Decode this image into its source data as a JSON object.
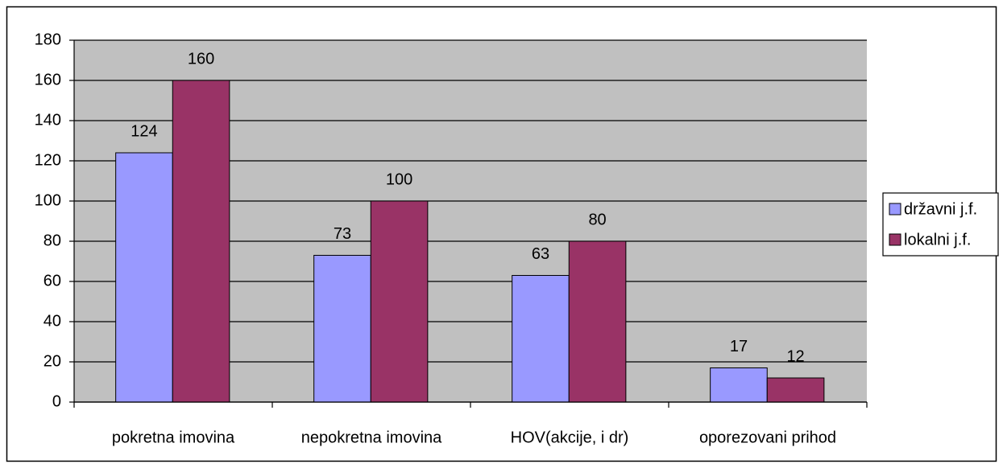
{
  "chart_data": {
    "type": "bar",
    "categories": [
      "pokretna imovina",
      "nepokretna imovina",
      "HOV(akcije, i dr)",
      "oporezovani prihod"
    ],
    "series": [
      {
        "name": "državni j.f.",
        "color": "#9999ff",
        "values": [
          124,
          73,
          63,
          17
        ]
      },
      {
        "name": "lokalni j.f.",
        "color": "#993366",
        "values": [
          160,
          100,
          80,
          12
        ]
      }
    ],
    "ylim": [
      0,
      180
    ],
    "yticks": [
      0,
      20,
      40,
      60,
      80,
      100,
      120,
      140,
      160,
      180
    ],
    "grid": true,
    "legend": "right",
    "data_labels": true
  }
}
